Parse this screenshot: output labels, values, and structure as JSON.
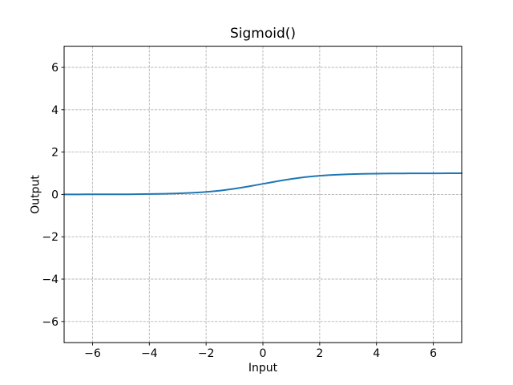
{
  "figure": {
    "background": "#ffffff"
  },
  "chart_data": {
    "type": "line",
    "title": "Sigmoid()",
    "xlabel": "Input",
    "ylabel": "Output",
    "xlim": [
      -7,
      7
    ],
    "ylim": [
      -7,
      7
    ],
    "xticks": [
      -6,
      -4,
      -2,
      0,
      2,
      4,
      6
    ],
    "xtick_labels": [
      "−6",
      "−4",
      "−2",
      "0",
      "2",
      "4",
      "6"
    ],
    "yticks": [
      -6,
      -4,
      -2,
      0,
      2,
      4,
      6
    ],
    "ytick_labels": [
      "−6",
      "−4",
      "−2",
      "0",
      "2",
      "4",
      "6"
    ],
    "grid": true,
    "grid_linestyle": "dashed",
    "grid_color": "#b5b5b5",
    "line_color": "#1f77b4",
    "line_width": 2,
    "legend": null,
    "series": [
      {
        "name": "Sigmoid",
        "x": [
          -7,
          -6.75,
          -6.5,
          -6.25,
          -6,
          -5.75,
          -5.5,
          -5.25,
          -5,
          -4.75,
          -4.5,
          -4.25,
          -4,
          -3.75,
          -3.5,
          -3.25,
          -3,
          -2.75,
          -2.5,
          -2.25,
          -2,
          -1.75,
          -1.5,
          -1.25,
          -1,
          -0.75,
          -0.5,
          -0.25,
          0,
          0.25,
          0.5,
          0.75,
          1,
          1.25,
          1.5,
          1.75,
          2,
          2.25,
          2.5,
          2.75,
          3,
          3.25,
          3.5,
          3.75,
          4,
          4.25,
          4.5,
          4.75,
          5,
          5.25,
          5.5,
          5.75,
          6,
          6.25,
          6.5,
          6.75,
          7
        ],
        "y": [
          0.0009,
          0.0012,
          0.0015,
          0.0019,
          0.0025,
          0.0032,
          0.0041,
          0.0052,
          0.0067,
          0.0086,
          0.011,
          0.0141,
          0.018,
          0.023,
          0.0293,
          0.0373,
          0.0474,
          0.0601,
          0.0759,
          0.0953,
          0.1192,
          0.1479,
          0.1824,
          0.2227,
          0.2689,
          0.3208,
          0.3775,
          0.4378,
          0.5,
          0.5622,
          0.6225,
          0.6792,
          0.7311,
          0.7773,
          0.8176,
          0.8521,
          0.8808,
          0.9047,
          0.9241,
          0.9399,
          0.9526,
          0.9627,
          0.9707,
          0.977,
          0.982,
          0.9859,
          0.989,
          0.9914,
          0.9933,
          0.9948,
          0.9959,
          0.9968,
          0.9975,
          0.9981,
          0.9985,
          0.9988,
          0.9991
        ]
      }
    ]
  }
}
